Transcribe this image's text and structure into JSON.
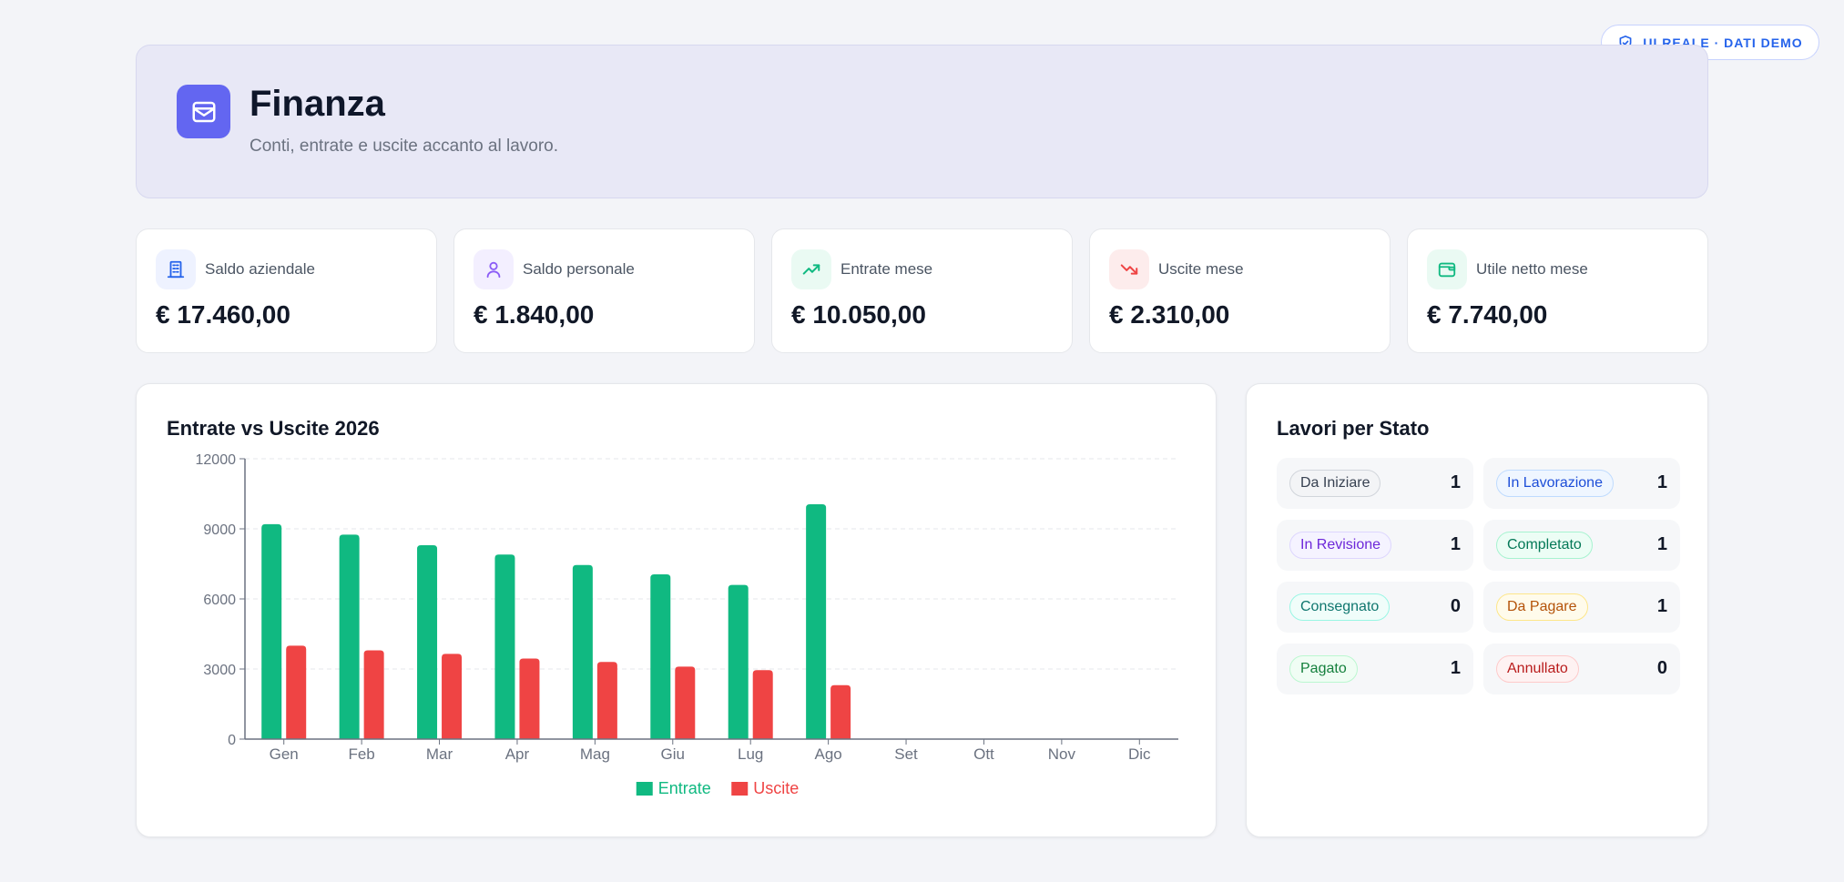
{
  "badge": {
    "label": "UI REALE · DATI DEMO",
    "icon": "shield-check-icon"
  },
  "header": {
    "title": "Finanza",
    "subtitle": "Conti, entrate e uscite accanto al lavoro.",
    "icon": "wallet-icon",
    "accent": "#6366f1"
  },
  "kpis": [
    {
      "label": "Saldo aziendale",
      "value": "€ 17.460,00",
      "icon": "building-icon",
      "color": "#2563eb",
      "bg": "#eef2ff"
    },
    {
      "label": "Saldo personale",
      "value": "€ 1.840,00",
      "icon": "user-icon",
      "color": "#8b5cf6",
      "bg": "#f3efff"
    },
    {
      "label": "Entrate mese",
      "value": "€ 10.050,00",
      "icon": "trending-up-icon",
      "color": "#10b981",
      "bg": "#eafaf3"
    },
    {
      "label": "Uscite mese",
      "value": "€ 2.310,00",
      "icon": "trending-down-icon",
      "color": "#ef4444",
      "bg": "#fdecec"
    },
    {
      "label": "Utile netto mese",
      "value": "€ 7.740,00",
      "icon": "wallet-icon",
      "color": "#10b981",
      "bg": "#eafaf3"
    }
  ],
  "chart_card": {
    "title": "Entrate vs Uscite 2026"
  },
  "chart_data": {
    "type": "bar",
    "title": "Entrate vs Uscite 2026",
    "categories": [
      "Gen",
      "Feb",
      "Mar",
      "Apr",
      "Mag",
      "Giu",
      "Lug",
      "Ago",
      "Set",
      "Ott",
      "Nov",
      "Dic"
    ],
    "series": [
      {
        "name": "Entrate",
        "color": "#10b981",
        "values": [
          9200,
          8750,
          8300,
          7900,
          7450,
          7050,
          6600,
          10050,
          null,
          null,
          null,
          null
        ]
      },
      {
        "name": "Uscite",
        "color": "#ef4444",
        "values": [
          4000,
          3800,
          3650,
          3450,
          3300,
          3100,
          2950,
          2310,
          null,
          null,
          null,
          null
        ]
      }
    ],
    "yticks": [
      0,
      3000,
      6000,
      9000,
      12000
    ],
    "ylim": [
      0,
      12000
    ],
    "grid": true,
    "legend": "bottom"
  },
  "status_card": {
    "title": "Lavori per Stato",
    "items": [
      {
        "label": "Da Iniziare",
        "count": "1",
        "fg": "#374151",
        "bg": "#f3f4f6",
        "border": "#d1d5db"
      },
      {
        "label": "In Lavorazione",
        "count": "1",
        "fg": "#1d4ed8",
        "bg": "#eff6ff",
        "border": "#bfdbfe"
      },
      {
        "label": "In Revisione",
        "count": "1",
        "fg": "#6d28d9",
        "bg": "#f5f3ff",
        "border": "#ddd6fe"
      },
      {
        "label": "Completato",
        "count": "1",
        "fg": "#047857",
        "bg": "#ecfdf5",
        "border": "#a7f3d0"
      },
      {
        "label": "Consegnato",
        "count": "0",
        "fg": "#0f766e",
        "bg": "#f0fdfa",
        "border": "#99f6e4"
      },
      {
        "label": "Da Pagare",
        "count": "1",
        "fg": "#b45309",
        "bg": "#fffbeb",
        "border": "#fde68a"
      },
      {
        "label": "Pagato",
        "count": "1",
        "fg": "#15803d",
        "bg": "#f0fdf4",
        "border": "#bbf7d0"
      },
      {
        "label": "Annullato",
        "count": "0",
        "fg": "#b91c1c",
        "bg": "#fef2f2",
        "border": "#fecaca"
      }
    ]
  }
}
